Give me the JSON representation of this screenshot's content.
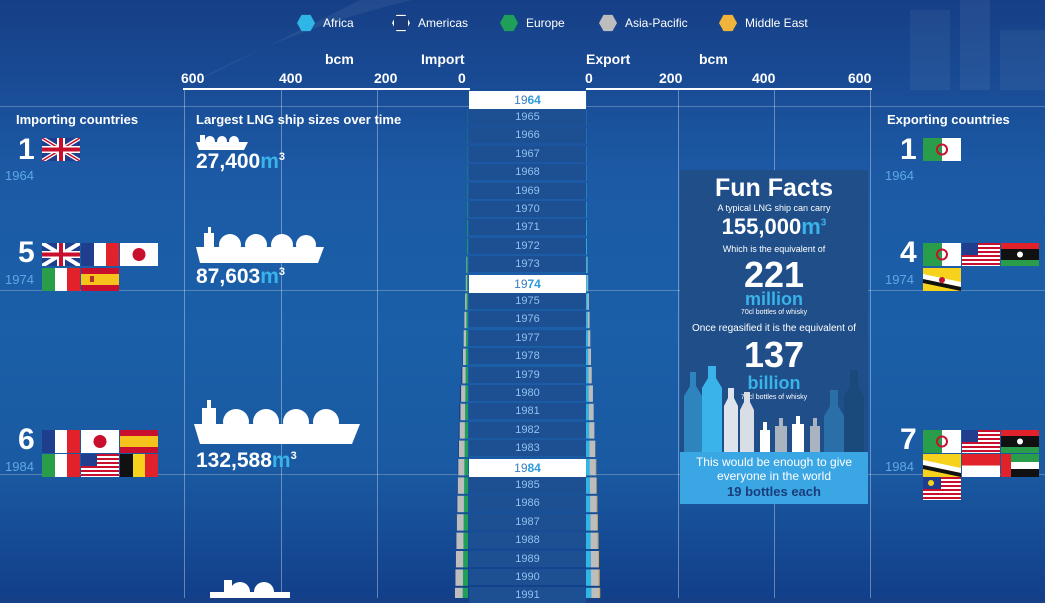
{
  "legend": [
    {
      "label": "Africa",
      "color": "#2fb5e6"
    },
    {
      "label": "Americas",
      "color": "#1b3c7c"
    },
    {
      "label": "Europe",
      "color": "#1ea05a"
    },
    {
      "label": "Asia-Pacific",
      "color": "#bdbdbd"
    },
    {
      "label": "Middle East",
      "color": "#f0b43c"
    }
  ],
  "axes": {
    "unit_left": "bcm",
    "unit_right": "bcm",
    "import_label": "Import",
    "export_label": "Export",
    "left_ticks": [
      "600",
      "400",
      "200",
      "0"
    ],
    "right_ticks": [
      "0",
      "200",
      "400",
      "600"
    ]
  },
  "importing": {
    "title": "Importing countries",
    "entries": [
      {
        "count": "1",
        "year": "1964"
      },
      {
        "count": "5",
        "year": "1974"
      },
      {
        "count": "6",
        "year": "1984"
      }
    ]
  },
  "exporting": {
    "title": "Exporting countries",
    "entries": [
      {
        "count": "1",
        "year": "1964"
      },
      {
        "count": "4",
        "year": "1974"
      },
      {
        "count": "7",
        "year": "1984"
      }
    ]
  },
  "ships": {
    "title": "Largest LNG ship sizes over time",
    "items": [
      {
        "num": "27,400",
        "unit": "m",
        "exp": "3"
      },
      {
        "num": "87,603",
        "unit": "m",
        "exp": "3"
      },
      {
        "num": "132,588",
        "unit": "m",
        "exp": "3"
      }
    ]
  },
  "fun_facts": {
    "title": "Fun Facts",
    "l1": "A typical LNG ship can carry",
    "l2_num": "155,000",
    "l2_unit": "m",
    "l2_exp": "3",
    "l3": "Which is the equivalent of",
    "big1": "221",
    "big1_word": "million",
    "small1": "70cl bottles of whisky",
    "l4": "Once regasified it is the equivalent of",
    "big2": "137",
    "big2_word": "billion",
    "small2": "70cl bottles of whisky",
    "foot1": "This would be enough to give",
    "foot2": "everyone in the world",
    "foot3": "19 bottles each"
  },
  "chart_data": {
    "type": "bar",
    "title": "",
    "xlabel": "bcm",
    "ylabel": "",
    "categories": [
      "1964",
      "1965",
      "1966",
      "1967",
      "1968",
      "1969",
      "1970",
      "1971",
      "1972",
      "1973",
      "1974",
      "1975",
      "1976",
      "1977",
      "1978",
      "1979",
      "1980",
      "1981",
      "1982",
      "1983",
      "1984",
      "1985",
      "1986",
      "1987",
      "1988",
      "1989",
      "1990",
      "1991"
    ],
    "highlight_years": [
      "1964",
      "1974",
      "1984"
    ],
    "xlim": [
      0,
      600
    ],
    "series": [
      {
        "name": "Europe",
        "side": "import",
        "values": [
          0.3,
          0.5,
          0.6,
          0.7,
          0.8,
          0.9,
          1.2,
          1.5,
          1.8,
          2.2,
          2.6,
          3,
          3.5,
          4,
          4.5,
          5,
          5.5,
          6,
          6.5,
          7,
          7.5,
          8,
          8.5,
          9,
          9.5,
          10,
          10.5,
          11
        ]
      },
      {
        "name": "Asia-Pacific",
        "side": "import",
        "values": [
          0,
          0,
          0,
          0,
          0,
          0,
          0,
          0,
          0,
          1,
          2,
          3,
          4,
          5,
          6,
          7,
          9,
          10,
          11,
          12,
          13,
          13.5,
          14,
          14.5,
          15,
          15.5,
          16,
          16.5
        ]
      },
      {
        "name": "Americas",
        "side": "import",
        "values": [
          0,
          0,
          0,
          0,
          0,
          0,
          0,
          0,
          0,
          0,
          0,
          0,
          0,
          0,
          1,
          2,
          2.5,
          2.5,
          2,
          1.5,
          1,
          1,
          1,
          1,
          1,
          1,
          1,
          1
        ]
      },
      {
        "name": "Africa",
        "side": "export",
        "values": [
          0.3,
          0.5,
          0.6,
          0.7,
          0.8,
          0.9,
          1.2,
          1.5,
          1.8,
          2.2,
          2.6,
          3,
          3.5,
          4,
          4.5,
          5,
          5.5,
          6,
          6.5,
          7,
          7.5,
          8,
          8.5,
          9,
          9.5,
          10,
          10.5,
          11
        ]
      },
      {
        "name": "Asia-Pacific",
        "side": "export",
        "values": [
          0,
          0,
          0,
          0,
          0,
          0,
          0,
          0,
          0,
          1,
          2,
          3,
          4,
          5,
          6,
          7,
          9,
          10,
          11,
          12,
          13,
          13.5,
          14,
          14.5,
          15,
          15.5,
          16,
          16.5
        ]
      },
      {
        "name": "Middle East",
        "side": "export",
        "values": [
          0,
          0,
          0,
          0,
          0,
          0,
          0,
          0,
          0,
          0,
          0,
          0,
          0,
          0,
          0,
          0,
          0,
          0,
          0,
          0.5,
          1,
          1,
          1.2,
          1.4,
          1.6,
          1.8,
          2,
          2.2
        ]
      }
    ]
  }
}
